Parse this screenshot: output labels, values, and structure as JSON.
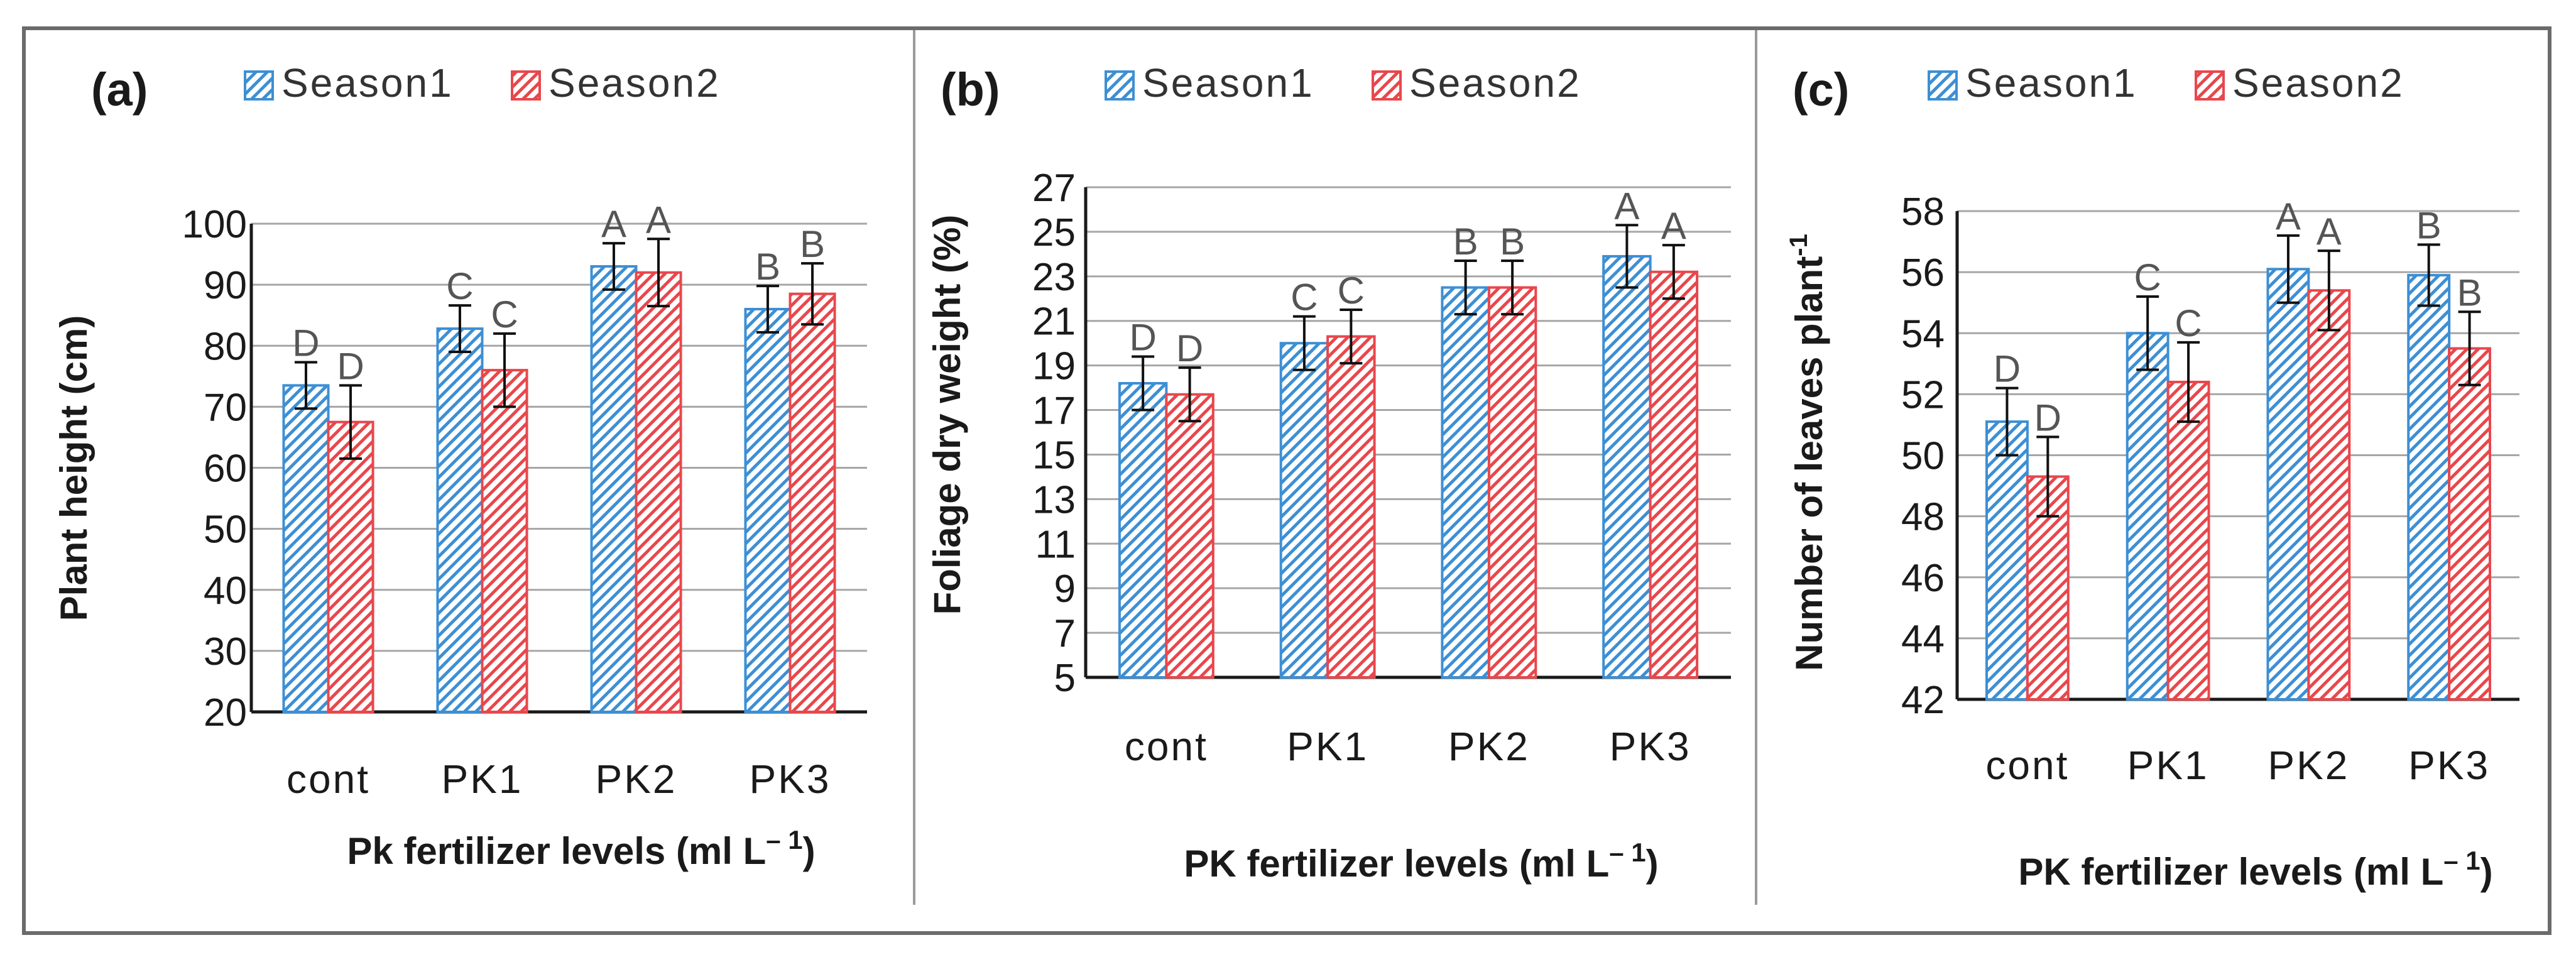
{
  "colors": {
    "season1": "#3d8fd4",
    "season2": "#e8474c",
    "grid": "#a6a6a6",
    "axis": "#1a1a1a",
    "frame": "#6b6b6b",
    "text": "#1a1a1a",
    "letter": "#555555"
  },
  "chart_data": [
    {
      "type": "bar",
      "panel_label": "(a)",
      "categories": [
        "cont",
        "PK1",
        "PK2",
        "PK3"
      ],
      "series": [
        {
          "name": "Season1",
          "values": [
            73.5,
            82.8,
            93,
            86
          ],
          "errors": [
            3.8,
            3.8,
            3.8,
            3.8
          ],
          "letters": [
            "D",
            "C",
            "A",
            "B"
          ]
        },
        {
          "name": "Season2",
          "values": [
            67.5,
            76,
            92,
            88.5
          ],
          "errors": [
            6,
            6,
            5.5,
            5
          ],
          "letters": [
            "D",
            "C",
            "A",
            "B"
          ]
        }
      ],
      "legend": [
        "Season1",
        "Season2"
      ],
      "xlabel_main": "Pk fertilizer levels (ml L",
      "xlabel_sup": "– 1",
      "xlabel_end": ")",
      "ylabel_main": "Plant height (cm)",
      "ylabel_sup": "",
      "ylim": [
        20,
        100
      ],
      "yticks": [
        20,
        30,
        40,
        50,
        60,
        70,
        80,
        90,
        100
      ],
      "grid": true
    },
    {
      "type": "bar",
      "panel_label": "(b)",
      "categories": [
        "cont",
        "PK1",
        "PK2",
        "PK3"
      ],
      "series": [
        {
          "name": "Season1",
          "values": [
            18.2,
            20,
            22.5,
            23.9
          ],
          "errors": [
            1.2,
            1.2,
            1.2,
            1.4
          ],
          "letters": [
            "D",
            "C",
            "B",
            "A"
          ]
        },
        {
          "name": "Season2",
          "values": [
            17.7,
            20.3,
            22.5,
            23.2
          ],
          "errors": [
            1.2,
            1.2,
            1.2,
            1.2
          ],
          "letters": [
            "D",
            "C",
            "B",
            "A"
          ]
        }
      ],
      "legend": [
        "Season1",
        "Season2"
      ],
      "xlabel_main": "PK fertilizer levels (ml L",
      "xlabel_sup": "– 1",
      "xlabel_end": ")",
      "ylabel_main": "Foliage dry weight (%)",
      "ylabel_sup": "",
      "ylim": [
        5,
        27
      ],
      "yticks": [
        5,
        7,
        9,
        11,
        13,
        15,
        17,
        19,
        21,
        23,
        25,
        27
      ],
      "grid": true
    },
    {
      "type": "bar",
      "panel_label": "(c)",
      "categories": [
        "cont",
        "PK1",
        "PK2",
        "PK3"
      ],
      "series": [
        {
          "name": "Season1",
          "values": [
            51.1,
            54,
            56.1,
            55.9
          ],
          "errors": [
            1.1,
            1.2,
            1.1,
            1.0
          ],
          "letters": [
            "D",
            "C",
            "A",
            "B"
          ]
        },
        {
          "name": "Season2",
          "values": [
            49.3,
            52.4,
            55.4,
            53.5
          ],
          "errors": [
            1.3,
            1.3,
            1.3,
            1.2
          ],
          "letters": [
            "D",
            "C",
            "A",
            "B"
          ]
        }
      ],
      "legend": [
        "Season1",
        "Season2"
      ],
      "xlabel_main": "PK fertilizer levels (ml L",
      "xlabel_sup": "– 1",
      "xlabel_end": ")",
      "ylabel_main": "Number of leaves plant",
      "ylabel_sup": "-1",
      "ylim": [
        42,
        58
      ],
      "yticks": [
        42,
        44,
        46,
        48,
        50,
        52,
        54,
        56,
        58
      ],
      "grid": true
    }
  ]
}
